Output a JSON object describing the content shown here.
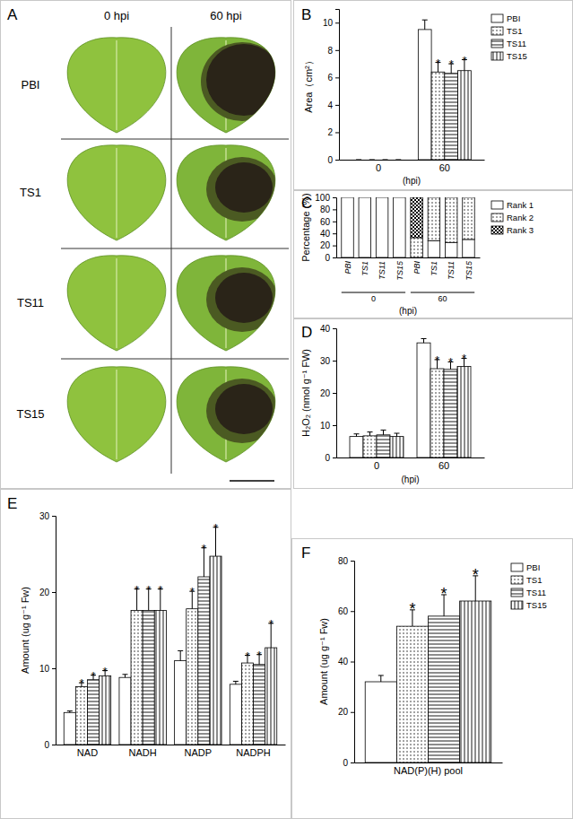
{
  "photo_panel": {
    "panel_label": "A",
    "columns": [
      "0 hpi",
      "60 hpi"
    ],
    "rows": [
      "PBI",
      "TS1",
      "TS11",
      "TS15"
    ]
  },
  "chart_data": [
    {
      "panel_label": "B",
      "type": "bar",
      "categories": [
        "0",
        "60"
      ],
      "x_label": "(hpi)",
      "y_label": "Area（cm²）",
      "ylim": [
        0,
        11
      ],
      "yticks": [
        0,
        2,
        4,
        6,
        8,
        10
      ],
      "legend": "top-right",
      "series": [
        {
          "name": "PBI",
          "color": "#000000",
          "values": [
            0,
            9.5
          ],
          "errors": [
            0,
            0.7
          ],
          "significance": [
            null,
            null
          ]
        },
        {
          "name": "TS1",
          "color": "#000000",
          "values": [
            0,
            6.4
          ],
          "errors": [
            0,
            0.7
          ],
          "significance": [
            null,
            "*"
          ]
        },
        {
          "name": "TS11",
          "color": "#000000",
          "values": [
            0,
            6.3
          ],
          "errors": [
            0,
            0.7
          ],
          "significance": [
            null,
            "*"
          ]
        },
        {
          "name": "TS15",
          "color": "#000000",
          "values": [
            0,
            6.5
          ],
          "errors": [
            0,
            0.8
          ],
          "significance": [
            null,
            "*"
          ]
        }
      ]
    },
    {
      "panel_label": "C",
      "type": "bar",
      "stacked": true,
      "categories": [
        "PBI",
        "TS1",
        "TS11",
        "TS15",
        "PBI",
        "TS1",
        "TS11",
        "TS15"
      ],
      "x_groups": [
        "0",
        "60"
      ],
      "x_label": "(hpi)",
      "y_label": "Percentage (%)",
      "ylim": [
        0,
        100
      ],
      "yticks": [
        0,
        20,
        40,
        60,
        80,
        100
      ],
      "legend": "top-right",
      "series": [
        {
          "name": "Rank 1",
          "color": "#000000",
          "values": [
            100,
            100,
            100,
            100,
            0,
            28,
            25,
            30
          ]
        },
        {
          "name": "Rank 2",
          "color": "#000000",
          "values": [
            0,
            0,
            0,
            0,
            33,
            72,
            75,
            70
          ]
        },
        {
          "name": "Rank 3",
          "color": "#000000",
          "values": [
            0,
            0,
            0,
            0,
            67,
            0,
            0,
            0
          ]
        }
      ]
    },
    {
      "panel_label": "D",
      "type": "bar",
      "categories": [
        "0",
        "60"
      ],
      "x_label": "(hpi)",
      "y_label": "H₂O₂ (nmol g⁻¹ FW)",
      "ylim": [
        0,
        40
      ],
      "yticks": [
        0,
        10,
        20,
        30,
        40
      ],
      "series": [
        {
          "name": "PBI",
          "color": "#000000",
          "values": [
            6.5,
            35.5
          ],
          "errors": [
            0.8,
            1.3
          ],
          "significance": [
            null,
            null
          ]
        },
        {
          "name": "TS1",
          "color": "#000000",
          "values": [
            6.7,
            27.5
          ],
          "errors": [
            1.2,
            2.8
          ],
          "significance": [
            null,
            "*"
          ]
        },
        {
          "name": "TS11",
          "color": "#000000",
          "values": [
            7.0,
            27.3
          ],
          "errors": [
            1.5,
            2.3
          ],
          "significance": [
            null,
            "*"
          ]
        },
        {
          "name": "TS15",
          "color": "#000000",
          "values": [
            6.5,
            28.2
          ],
          "errors": [
            1.0,
            2.5
          ],
          "significance": [
            null,
            "*"
          ]
        }
      ]
    },
    {
      "panel_label": "E",
      "type": "bar",
      "categories": [
        "NAD",
        "NADH",
        "NADP",
        "NADPH"
      ],
      "y_label": "Amount (ug g⁻¹ Fw)",
      "ylim": [
        0,
        30
      ],
      "yticks": [
        0,
        10,
        20,
        30
      ],
      "series": [
        {
          "name": "PBI",
          "color": "#000000",
          "values": [
            4.2,
            8.8,
            11.0,
            7.9
          ],
          "errors": [
            0.2,
            0.4,
            1.3,
            0.4
          ],
          "significance": [
            null,
            null,
            null,
            null
          ]
        },
        {
          "name": "TS1",
          "color": "#000000",
          "values": [
            7.6,
            17.6,
            17.8,
            10.7
          ],
          "errors": [
            0.5,
            2.8,
            2.3,
            1.0
          ],
          "significance": [
            "*",
            "*",
            "*",
            "*"
          ]
        },
        {
          "name": "TS11",
          "color": "#000000",
          "values": [
            8.5,
            17.6,
            22.0,
            10.5
          ],
          "errors": [
            0.6,
            2.8,
            3.8,
            1.3
          ],
          "significance": [
            "*",
            "*",
            "*",
            "*"
          ]
        },
        {
          "name": "TS15",
          "color": "#000000",
          "values": [
            9.0,
            17.6,
            24.7,
            12.7
          ],
          "errors": [
            0.7,
            2.8,
            3.8,
            3.2
          ],
          "significance": [
            "*",
            "*",
            "*",
            "*"
          ]
        }
      ]
    },
    {
      "panel_label": "F",
      "type": "bar",
      "categories": [
        "NAD(P)(H) pool"
      ],
      "y_label": "Amount (ug g⁻¹ Fw)",
      "ylim": [
        0,
        80
      ],
      "yticks": [
        0,
        20,
        40,
        60,
        80
      ],
      "legend": "top-right",
      "series": [
        {
          "name": "PBI",
          "color": "#000000",
          "values": [
            32
          ],
          "errors": [
            2.5
          ],
          "significance": [
            null
          ]
        },
        {
          "name": "TS1",
          "color": "#000000",
          "values": [
            54
          ],
          "errors": [
            6.5
          ],
          "significance": [
            "*"
          ]
        },
        {
          "name": "TS11",
          "color": "#000000",
          "values": [
            58
          ],
          "errors": [
            8.5
          ],
          "significance": [
            "*"
          ]
        },
        {
          "name": "TS15",
          "color": "#000000",
          "values": [
            64
          ],
          "errors": [
            10
          ],
          "significance": [
            "*"
          ]
        }
      ]
    }
  ]
}
